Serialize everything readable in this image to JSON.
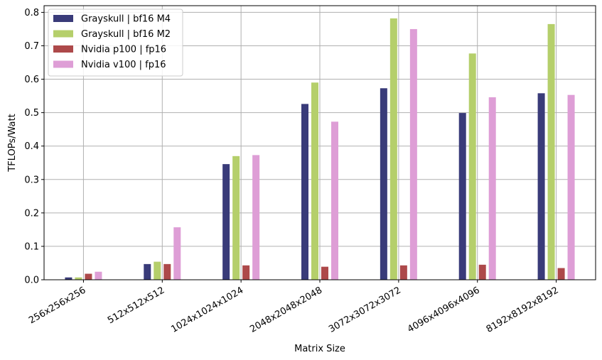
{
  "chart_data": {
    "type": "bar",
    "title": "",
    "xlabel": "Matrix Size",
    "ylabel": "TFLOPs/Watt",
    "ylim": [
      0,
      0.82
    ],
    "yticks": [
      "0.0",
      "0.1",
      "0.2",
      "0.3",
      "0.4",
      "0.5",
      "0.6",
      "0.7",
      "0.8"
    ],
    "categories": [
      "256x256x256",
      "512x512x512",
      "1024x1024x1024",
      "2048x2048x2048",
      "3072x3072x3072",
      "4096x4096x4096",
      "8192x8192x8192"
    ],
    "grid": true,
    "legend_position": "top-left",
    "series": [
      {
        "name": "Grayskull | bf16 M4",
        "color": "#393b79",
        "values": [
          0.007,
          0.047,
          0.346,
          0.526,
          0.573,
          0.499,
          0.558
        ]
      },
      {
        "name": "Grayskull | bf16 M2",
        "color": "#b5cf6b",
        "values": [
          0.007,
          0.054,
          0.37,
          0.59,
          0.782,
          0.677,
          0.765
        ]
      },
      {
        "name": "Nvidia p100 | fp16",
        "color": "#ad494a",
        "values": [
          0.018,
          0.047,
          0.043,
          0.039,
          0.043,
          0.045,
          0.035
        ]
      },
      {
        "name": "Nvidia v100 | fp16",
        "color": "#de9ed6",
        "values": [
          0.024,
          0.157,
          0.373,
          0.473,
          0.75,
          0.546,
          0.553
        ]
      }
    ]
  }
}
